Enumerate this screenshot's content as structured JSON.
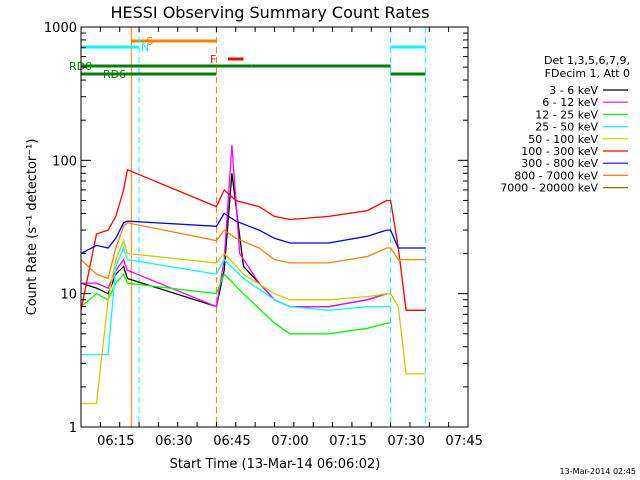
{
  "chart_data": {
    "type": "line",
    "title": "HESSI Observing Summary Count Rates",
    "xlabel": "Start Time (13-Mar-14 06:06:02)",
    "ylabel": "Count Rate (s⁻¹ detector⁻¹)",
    "yscale": "log",
    "ylim": [
      1,
      1000
    ],
    "xlim": [
      "06:06",
      "07:46"
    ],
    "xticks": [
      "06:15",
      "06:30",
      "06:45",
      "07:00",
      "07:15",
      "07:30",
      "07:45"
    ],
    "yticks": [
      "1",
      "10",
      "100",
      "1000"
    ],
    "legend_position": "right",
    "legend_header": [
      "Det 1,3,5,6,7,9,",
      "FDecim 1, Att 0"
    ],
    "timestamp": "13-Mar-2014 02:45",
    "flags": [
      {
        "label": "S",
        "color": "#ff8000",
        "segments": [
          [
            "06:19",
            "06:41"
          ]
        ],
        "marker_times": [
          "06:19",
          "06:41"
        ]
      },
      {
        "label": "N",
        "color": "#00ffff",
        "segments": [
          [
            "06:06",
            "06:21"
          ],
          [
            "07:26",
            "07:35"
          ]
        ],
        "marker_times": [
          "06:21",
          "07:26",
          "07:35"
        ]
      },
      {
        "label": "F",
        "color": "#ff0000",
        "segments": [
          [
            "06:44",
            "06:48"
          ]
        ]
      },
      {
        "label": "RD0",
        "color": "#008000",
        "segments": [
          [
            "06:06",
            "06:41"
          ],
          [
            "06:41",
            "06:50"
          ],
          [
            "06:50",
            "07:26"
          ]
        ]
      },
      {
        "label": "RD6",
        "color": "#008000",
        "segments": [
          [
            "06:06",
            "06:41"
          ],
          [
            "07:26",
            "07:35"
          ]
        ]
      }
    ],
    "series": [
      {
        "name": "3 - 6 keV",
        "color": "#000000",
        "points": [
          [
            "06:06",
            12
          ],
          [
            "06:10",
            11
          ],
          [
            "06:13",
            10
          ],
          [
            "06:15",
            14
          ],
          [
            "06:17",
            16
          ],
          [
            "06:18",
            13
          ],
          [
            "06:41",
            8
          ],
          [
            "06:43",
            15
          ],
          [
            "06:45",
            80
          ],
          [
            "06:48",
            16
          ],
          [
            "06:52",
            12
          ],
          [
            "06:56",
            9
          ],
          [
            "07:00",
            8
          ],
          [
            "07:10",
            8
          ],
          [
            "07:20",
            9
          ],
          [
            "07:25",
            10
          ],
          [
            "07:26",
            10
          ]
        ]
      },
      {
        "name": "6 - 12 keV",
        "color": "#ff00ff",
        "points": [
          [
            "06:06",
            12
          ],
          [
            "06:10",
            12
          ],
          [
            "06:13",
            11
          ],
          [
            "06:15",
            15
          ],
          [
            "06:17",
            18
          ],
          [
            "06:18",
            15
          ],
          [
            "06:41",
            8
          ],
          [
            "06:43",
            18
          ],
          [
            "06:45",
            130
          ],
          [
            "06:47",
            20
          ],
          [
            "06:52",
            12
          ],
          [
            "06:56",
            9
          ],
          [
            "07:00",
            8
          ],
          [
            "07:10",
            8
          ],
          [
            "07:20",
            9
          ],
          [
            "07:25",
            10
          ],
          [
            "07:26",
            10
          ]
        ]
      },
      {
        "name": "12 - 25 keV",
        "color": "#00ff00",
        "points": [
          [
            "06:06",
            8
          ],
          [
            "06:10",
            10
          ],
          [
            "06:13",
            9
          ],
          [
            "06:15",
            12
          ],
          [
            "06:17",
            14
          ],
          [
            "06:18",
            12
          ],
          [
            "06:41",
            10
          ],
          [
            "06:43",
            14
          ],
          [
            "06:48",
            10
          ],
          [
            "06:56",
            6
          ],
          [
            "07:00",
            5
          ],
          [
            "07:10",
            5
          ],
          [
            "07:20",
            5.5
          ],
          [
            "07:25",
            6
          ],
          [
            "07:26",
            6
          ]
        ]
      },
      {
        "name": "25 - 50 keV",
        "color": "#00ffff",
        "points": [
          [
            "06:06",
            3.5
          ],
          [
            "06:10",
            3.5
          ],
          [
            "06:13",
            3.5
          ],
          [
            "06:15",
            16
          ],
          [
            "06:17",
            22
          ],
          [
            "06:18",
            18
          ],
          [
            "06:41",
            14
          ],
          [
            "06:43",
            18
          ],
          [
            "06:48",
            13
          ],
          [
            "06:56",
            9
          ],
          [
            "07:00",
            8
          ],
          [
            "07:10",
            7.5
          ],
          [
            "07:20",
            8
          ],
          [
            "07:25",
            8
          ],
          [
            "07:26",
            8
          ]
        ]
      },
      {
        "name": "50 - 100 keV",
        "color": "#cccc00",
        "points": [
          [
            "06:06",
            1.5
          ],
          [
            "06:10",
            1.5
          ],
          [
            "06:13",
            9
          ],
          [
            "06:15",
            18
          ],
          [
            "06:17",
            25
          ],
          [
            "06:18",
            20
          ],
          [
            "06:41",
            17
          ],
          [
            "06:43",
            20
          ],
          [
            "06:48",
            14
          ],
          [
            "06:56",
            10
          ],
          [
            "07:00",
            9
          ],
          [
            "07:10",
            9
          ],
          [
            "07:20",
            9.5
          ],
          [
            "07:25",
            10
          ],
          [
            "07:26",
            10
          ],
          [
            "07:28",
            8
          ],
          [
            "07:30",
            2.5
          ],
          [
            "07:35",
            2.5
          ]
        ]
      },
      {
        "name": "100 - 300 keV",
        "color": "#ff0000",
        "points": [
          [
            "06:06",
            7.5
          ],
          [
            "06:10",
            28
          ],
          [
            "06:13",
            30
          ],
          [
            "06:15",
            38
          ],
          [
            "06:17",
            60
          ],
          [
            "06:18",
            85
          ],
          [
            "06:41",
            45
          ],
          [
            "06:43",
            60
          ],
          [
            "06:46",
            50
          ],
          [
            "06:52",
            45
          ],
          [
            "06:56",
            38
          ],
          [
            "07:00",
            36
          ],
          [
            "07:10",
            38
          ],
          [
            "07:20",
            42
          ],
          [
            "07:25",
            50
          ],
          [
            "07:26",
            50
          ],
          [
            "07:28",
            22
          ],
          [
            "07:30",
            7.5
          ],
          [
            "07:35",
            7.5
          ]
        ]
      },
      {
        "name": "300 - 800 keV",
        "color": "#0000ff",
        "points": [
          [
            "06:06",
            20
          ],
          [
            "06:10",
            23
          ],
          [
            "06:13",
            22
          ],
          [
            "06:15",
            26
          ],
          [
            "06:17",
            34
          ],
          [
            "06:18",
            35
          ],
          [
            "06:41",
            32
          ],
          [
            "06:43",
            40
          ],
          [
            "06:46",
            35
          ],
          [
            "06:52",
            30
          ],
          [
            "06:56",
            26
          ],
          [
            "07:00",
            24
          ],
          [
            "07:10",
            24
          ],
          [
            "07:20",
            27
          ],
          [
            "07:25",
            30
          ],
          [
            "07:26",
            30
          ],
          [
            "07:28",
            22
          ],
          [
            "07:30",
            22
          ],
          [
            "07:35",
            22
          ]
        ]
      },
      {
        "name": "800 - 7000 keV",
        "color": "#ff8000",
        "points": [
          [
            "06:06",
            18
          ],
          [
            "06:10",
            14
          ],
          [
            "06:13",
            13
          ],
          [
            "06:15",
            22
          ],
          [
            "06:17",
            32
          ],
          [
            "06:18",
            34
          ],
          [
            "06:41",
            25
          ],
          [
            "06:43",
            30
          ],
          [
            "06:46",
            26
          ],
          [
            "06:52",
            22
          ],
          [
            "06:56",
            18
          ],
          [
            "07:00",
            17
          ],
          [
            "07:10",
            17
          ],
          [
            "07:20",
            19
          ],
          [
            "07:25",
            22
          ],
          [
            "07:26",
            22
          ],
          [
            "07:28",
            18
          ],
          [
            "07:30",
            18
          ],
          [
            "07:35",
            18
          ]
        ]
      },
      {
        "name": "7000 - 20000 keV",
        "color": "#996600",
        "points": []
      }
    ]
  }
}
